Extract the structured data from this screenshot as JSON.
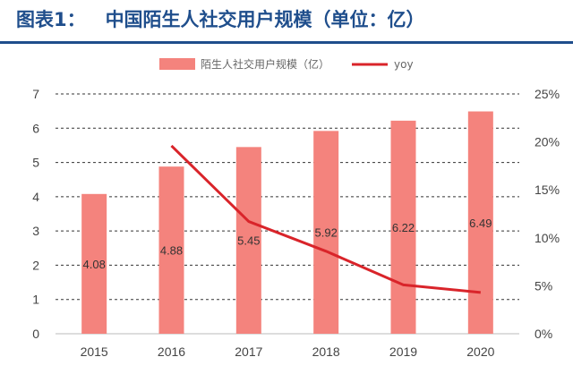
{
  "figure": {
    "caption_prefix": "图表1：",
    "caption_text": "中国陌生人社交用户规模（单位：亿）"
  },
  "chart_data": {
    "type": "bar",
    "categories": [
      "2015",
      "2016",
      "2017",
      "2018",
      "2019",
      "2020"
    ],
    "series": [
      {
        "name": "陌生人社交用户规模（亿）",
        "kind": "bar",
        "axis": "left",
        "values": [
          4.08,
          4.88,
          5.45,
          5.92,
          6.22,
          6.49
        ],
        "data_labels": [
          "4.08",
          "4.88",
          "5.45",
          "5.92",
          "6.22",
          "6.49"
        ],
        "color": "#f4837d"
      },
      {
        "name": "yoy",
        "kind": "line",
        "axis": "right",
        "values": [
          null,
          19.6,
          11.7,
          8.6,
          5.1,
          4.3
        ],
        "color": "#d9242a"
      }
    ],
    "ylim": [
      0,
      7
    ],
    "y_ticks": [
      "0",
      "1",
      "2",
      "3",
      "4",
      "5",
      "6",
      "7"
    ],
    "y2lim": [
      0,
      25
    ],
    "y2_ticks": [
      "0%",
      "5%",
      "10%",
      "15%",
      "20%",
      "25%"
    ],
    "legend_position": "top",
    "grid": "dashed-horizontal"
  }
}
